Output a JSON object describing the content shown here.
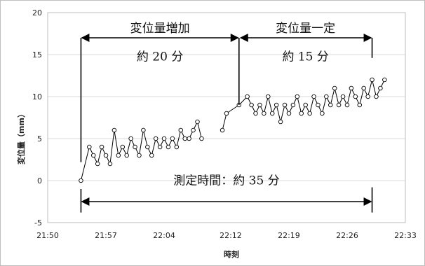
{
  "chart_data": {
    "type": "line",
    "title": "",
    "xlabel": "時刻",
    "ylabel": "変位量（mm）",
    "ylim": [
      -5,
      20
    ],
    "yticks": [
      -5,
      0,
      5,
      10,
      15,
      20
    ],
    "xlim": [
      "21:50",
      "22:33"
    ],
    "xticks": [
      "21:50",
      "21:57",
      "22:04",
      "22:12",
      "22:19",
      "22:26",
      "22:33"
    ],
    "grid": true,
    "legend": "none",
    "marker": "open-circle",
    "series": [
      {
        "x": [
          "21:54:00",
          "21:55:00",
          "21:55:30",
          "21:56:00",
          "21:56:30",
          "21:57:00",
          "21:57:30",
          "21:58:00",
          "21:58:30",
          "21:59:00",
          "21:59:30",
          "22:00:00",
          "22:00:30",
          "22:01:00",
          "22:01:30",
          "22:02:00",
          "22:02:30",
          "22:03:00",
          "22:03:30",
          "22:04:00",
          "22:04:30",
          "22:05:00",
          "22:05:30",
          "22:06:00",
          "22:06:30",
          "22:07:00",
          "22:07:30",
          "22:08:00",
          "22:08:30",
          "22:11:00",
          "22:11:30",
          "22:13:00",
          "22:14:00",
          "22:14:30",
          "22:15:00",
          "22:15:30",
          "22:16:00",
          "22:16:30",
          "22:17:00",
          "22:17:30",
          "22:18:00",
          "22:18:30",
          "22:19:00",
          "22:19:30",
          "22:20:00",
          "22:20:30",
          "22:21:00",
          "22:21:30",
          "22:22:00",
          "22:22:30",
          "22:23:00",
          "22:23:30",
          "22:24:00",
          "22:24:30",
          "22:25:00",
          "22:25:30",
          "22:26:00",
          "22:26:30",
          "22:27:00",
          "22:27:30",
          "22:28:00",
          "22:28:30",
          "22:29:00",
          "22:29:30",
          "22:30:00",
          "22:30:30"
        ],
        "y": [
          0,
          4,
          3,
          2,
          4,
          3,
          2,
          6,
          3,
          4,
          3,
          5,
          4,
          3,
          6,
          4,
          3,
          5,
          4,
          5,
          4,
          5,
          4,
          6,
          5,
          5,
          6,
          7,
          5,
          6,
          8,
          9,
          10,
          9,
          8,
          9,
          8,
          10,
          8,
          9,
          7,
          9,
          8,
          9,
          10,
          8,
          9,
          8,
          10,
          9,
          8,
          10,
          9,
          11,
          9,
          10,
          9,
          11,
          10,
          9,
          11,
          10,
          12,
          10,
          11,
          12
        ]
      }
    ],
    "annotations": [
      {
        "text": "変位量増加",
        "from": "21:54",
        "to": "22:13"
      },
      {
        "text": "約 20 分",
        "from": "21:54",
        "to": "22:13"
      },
      {
        "text": "変位量一定",
        "from": "22:13",
        "to": "22:29"
      },
      {
        "text": "約 15 分",
        "from": "22:13",
        "to": "22:29"
      },
      {
        "text": "測定時間：約 35 分",
        "from": "21:54",
        "to": "22:29"
      }
    ]
  }
}
